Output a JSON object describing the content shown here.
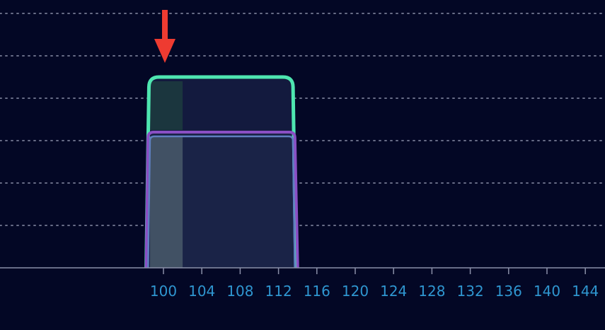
{
  "chart_data": {
    "type": "area",
    "title": "",
    "xlabel": "",
    "ylabel": "",
    "x_ticks": [
      100,
      104,
      108,
      112,
      116,
      120,
      124,
      128,
      132,
      136,
      140,
      144
    ],
    "xlim": [
      84,
      146
    ],
    "ylim": [
      0,
      6
    ],
    "y_gridlines": [
      1,
      2,
      3,
      4,
      5,
      6
    ],
    "grid": "horizontal-dotted",
    "series": [
      {
        "color": "#4ee6b0",
        "fill": "#131a3e",
        "points": [
          [
            98.2,
            0
          ],
          [
            98.5,
            4.5
          ],
          [
            113.5,
            4.5
          ],
          [
            113.8,
            0
          ]
        ]
      },
      {
        "color": "#8a4fc4",
        "fill": "#1a2347",
        "points": [
          [
            98.2,
            0
          ],
          [
            98.4,
            3.2
          ],
          [
            113.7,
            3.2
          ],
          [
            114,
            0
          ]
        ]
      },
      {
        "color": "#5f7fc0",
        "fill": "none",
        "points": [
          [
            98.4,
            0
          ],
          [
            98.6,
            3.1
          ],
          [
            113.5,
            3.1
          ],
          [
            113.7,
            0
          ]
        ]
      }
    ],
    "highlight_band": {
      "x_from": 98.6,
      "x_to": 102,
      "color": "#5b7078"
    },
    "arrow_marker": {
      "x": 100,
      "color": "#ee3b31"
    }
  },
  "colors": {
    "background": "#030725",
    "axis": "#8a8fa8",
    "grid": "#8a8fa8",
    "tick_label": "#2f96d0"
  }
}
